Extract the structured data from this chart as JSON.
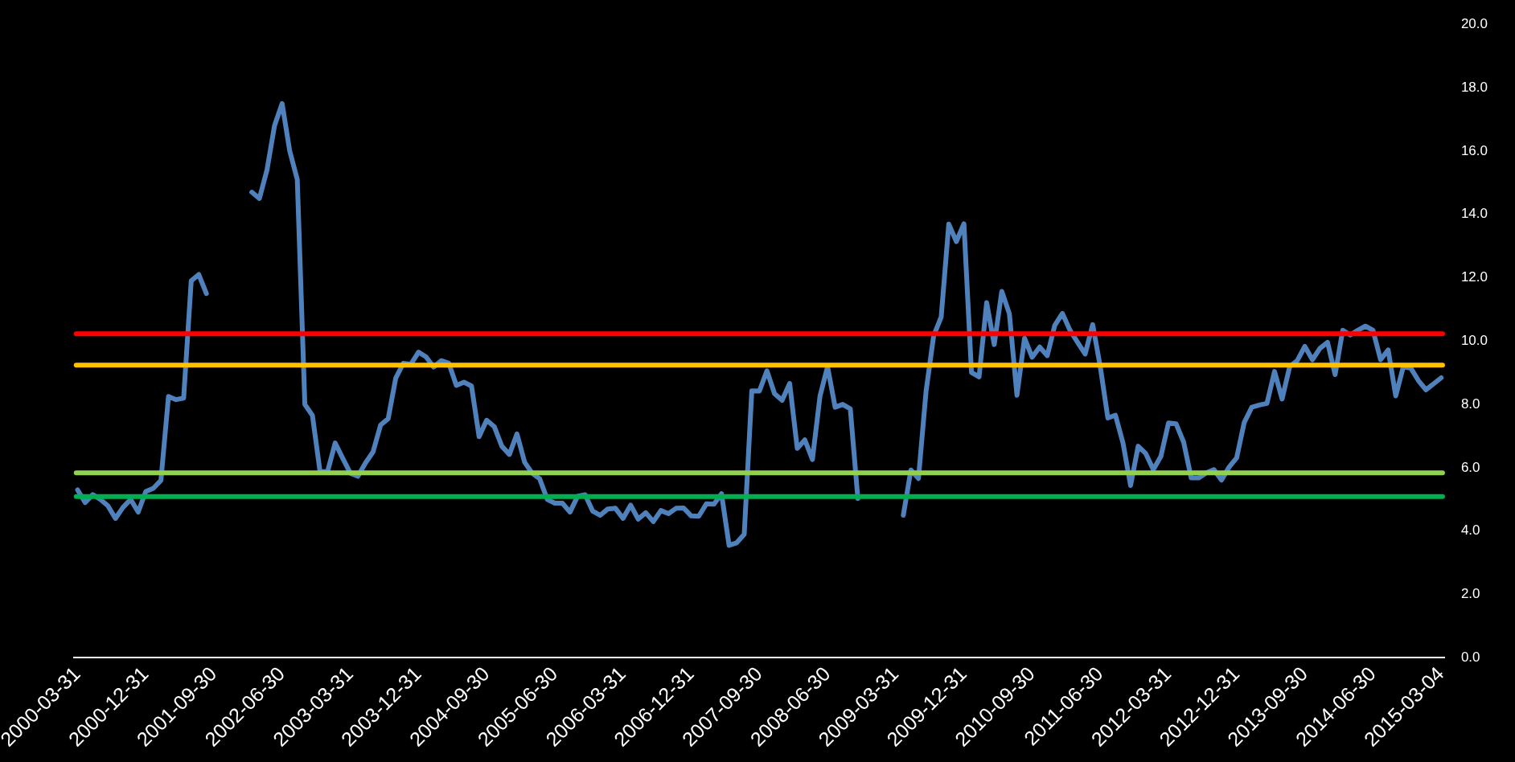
{
  "chart_data": {
    "type": "line",
    "categories": [
      "2000-03-31",
      null,
      null,
      null,
      null,
      null,
      null,
      null,
      null,
      "2000-12-31",
      null,
      null,
      null,
      null,
      null,
      null,
      null,
      null,
      "2001-09-30",
      null,
      null,
      null,
      null,
      null,
      null,
      null,
      null,
      "2002-06-30",
      null,
      null,
      null,
      null,
      null,
      null,
      null,
      null,
      "2003-03-31",
      null,
      null,
      null,
      null,
      null,
      null,
      null,
      null,
      "2003-12-31",
      null,
      null,
      null,
      null,
      null,
      null,
      null,
      null,
      "2004-09-30",
      null,
      null,
      null,
      null,
      null,
      null,
      null,
      null,
      "2005-06-30",
      null,
      null,
      null,
      null,
      null,
      null,
      null,
      null,
      "2006-03-31",
      null,
      null,
      null,
      null,
      null,
      null,
      null,
      null,
      "2006-12-31",
      null,
      null,
      null,
      null,
      null,
      null,
      null,
      null,
      "2007-09-30",
      null,
      null,
      null,
      null,
      null,
      null,
      null,
      null,
      "2008-06-30",
      null,
      null,
      null,
      null,
      null,
      null,
      null,
      null,
      "2009-03-31",
      null,
      null,
      null,
      null,
      null,
      null,
      null,
      null,
      "2009-12-31",
      null,
      null,
      null,
      null,
      null,
      null,
      null,
      null,
      "2010-09-30",
      null,
      null,
      null,
      null,
      null,
      null,
      null,
      null,
      "2011-06-30",
      null,
      null,
      null,
      null,
      null,
      null,
      null,
      null,
      "2012-03-31",
      null,
      null,
      null,
      null,
      null,
      null,
      null,
      null,
      "2012-12-31",
      null,
      null,
      null,
      null,
      null,
      null,
      null,
      null,
      "2013-09-30",
      null,
      null,
      null,
      null,
      null,
      null,
      null,
      null,
      "2014-06-30",
      null,
      null,
      null,
      null,
      null,
      null,
      null,
      null,
      "2015-03-04"
    ],
    "series": [
      {
        "color": "#4f81bd",
        "values": [
          5.3,
          4.9,
          5.15,
          5.0,
          4.8,
          4.4,
          4.75,
          5.0,
          4.6,
          5.25,
          5.35,
          5.6,
          8.25,
          8.15,
          8.2,
          11.9,
          12.1,
          11.5,
          null,
          null,
          null,
          null,
          null,
          14.7,
          14.5,
          15.4,
          16.8,
          17.5,
          16.0,
          15.1,
          8.0,
          7.65,
          5.88,
          5.88,
          6.78,
          6.3,
          5.83,
          5.73,
          6.15,
          6.5,
          7.35,
          7.55,
          8.83,
          9.3,
          9.27,
          9.65,
          9.5,
          9.18,
          9.38,
          9.3,
          8.6,
          8.7,
          8.58,
          6.98,
          7.5,
          7.3,
          6.68,
          6.42,
          7.07,
          6.18,
          5.83,
          5.65,
          5.0,
          4.88,
          4.88,
          4.6,
          5.1,
          5.15,
          4.63,
          4.5,
          4.7,
          4.72,
          4.4,
          4.82,
          4.38,
          4.58,
          4.3,
          4.65,
          4.55,
          4.72,
          4.73,
          4.48,
          4.47,
          4.86,
          4.85,
          5.18,
          3.55,
          3.63,
          3.9,
          8.43,
          8.42,
          9.06,
          8.34,
          8.13,
          8.66,
          6.61,
          6.88,
          6.26,
          8.26,
          9.19,
          7.91,
          8.0,
          7.86,
          5.03,
          null,
          null,
          null,
          null,
          null,
          4.5,
          5.93,
          5.66,
          8.41,
          10.16,
          10.76,
          13.69,
          13.14,
          13.7,
          9.01,
          8.87,
          11.21,
          9.89,
          11.57,
          10.86,
          8.29,
          10.09,
          9.49,
          9.81,
          9.54,
          10.5,
          10.87,
          10.34,
          9.96,
          9.59,
          10.52,
          9.19,
          7.57,
          7.66,
          6.78,
          5.44,
          6.68,
          6.45,
          5.94,
          6.36,
          7.41,
          7.39,
          6.81,
          5.68,
          5.68,
          5.84,
          5.94,
          5.61,
          6.02,
          6.31,
          7.43,
          7.91,
          7.98,
          8.03,
          9.04,
          8.17,
          9.19,
          9.38,
          9.83,
          9.41,
          9.77,
          9.96,
          8.94,
          10.34,
          10.19,
          10.34,
          10.47,
          10.34,
          9.41,
          9.72,
          8.27,
          9.19,
          9.14,
          8.75,
          8.46,
          8.65,
          8.84
        ]
      }
    ],
    "ylim": [
      0,
      20
    ],
    "yticks": [
      {
        "value": 0,
        "label": "0.0"
      },
      {
        "value": 2,
        "label": "2.0"
      },
      {
        "value": 4,
        "label": "4.0"
      },
      {
        "value": 6,
        "label": "6.0"
      },
      {
        "value": 8,
        "label": "8.0"
      },
      {
        "value": 10,
        "label": "10.0"
      },
      {
        "value": 12,
        "label": "12.0"
      },
      {
        "value": 14,
        "label": "14.0"
      },
      {
        "value": 16,
        "label": "16.0"
      },
      {
        "value": 18,
        "label": "18.0"
      },
      {
        "value": 20,
        "label": "20.0"
      }
    ],
    "ref_lines": [
      {
        "axis": "y",
        "value": 10.23,
        "color": "#ff0000"
      },
      {
        "axis": "y",
        "value": 9.24,
        "color": "#ffc000"
      },
      {
        "axis": "y",
        "value": 5.84,
        "color": "#92d050"
      },
      {
        "axis": "y",
        "value": 5.09,
        "color": "#00b050"
      }
    ],
    "legend": false,
    "marker": "none",
    "line_style": "solid"
  }
}
